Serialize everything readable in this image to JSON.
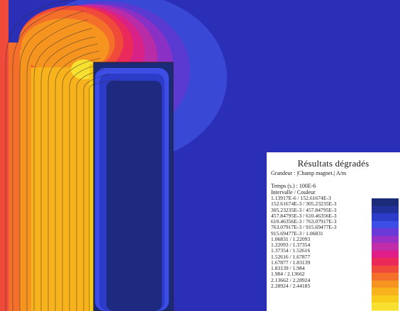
{
  "legend": {
    "title": "Résultats dégradés",
    "quantity": "Grandeur : |Champ magnet.| A/m",
    "time": "Temps (s.) : 100E-6",
    "header": "Intervalle  /  Couleur",
    "rows": [
      {
        "range": "1.13917E-6  /  152.61674E-3",
        "color": "#1c2a7a"
      },
      {
        "range": "152.61674E-3  /  305.23235E-3",
        "color": "#22309a"
      },
      {
        "range": "305.23235E-3  /  457.84795E-3",
        "color": "#2c3cc8"
      },
      {
        "range": "457.84795E-3  /  610.46356E-3",
        "color": "#3c4ee6"
      },
      {
        "range": "610.46356E-3  /  763.07917E-3",
        "color": "#6a3ad8"
      },
      {
        "range": "763.07917E-3  /  915.69477E-3",
        "color": "#9a30c4"
      },
      {
        "range": "915.69477E-3  /  1.06831",
        "color": "#c22ca8"
      },
      {
        "range": "1.06831  /  1.22093",
        "color": "#e01e88"
      },
      {
        "range": "1.22093  /  1.37354",
        "color": "#ec2a5a"
      },
      {
        "range": "1.37354  /  1.52616",
        "color": "#f04a3a"
      },
      {
        "range": "1.52616  /  1.67877",
        "color": "#f4702a"
      },
      {
        "range": "1.67877  /  1.83139",
        "color": "#f69420"
      },
      {
        "range": "1.83139  /  1.984",
        "color": "#f8b21c"
      },
      {
        "range": "1.984  /  2.13662",
        "color": "#f8cc1a"
      },
      {
        "range": "2.13662  /  2.28924",
        "color": "#f8e030"
      },
      {
        "range": "2.28924  /  2.44185",
        "color": "#f8f06a"
      }
    ]
  }
}
